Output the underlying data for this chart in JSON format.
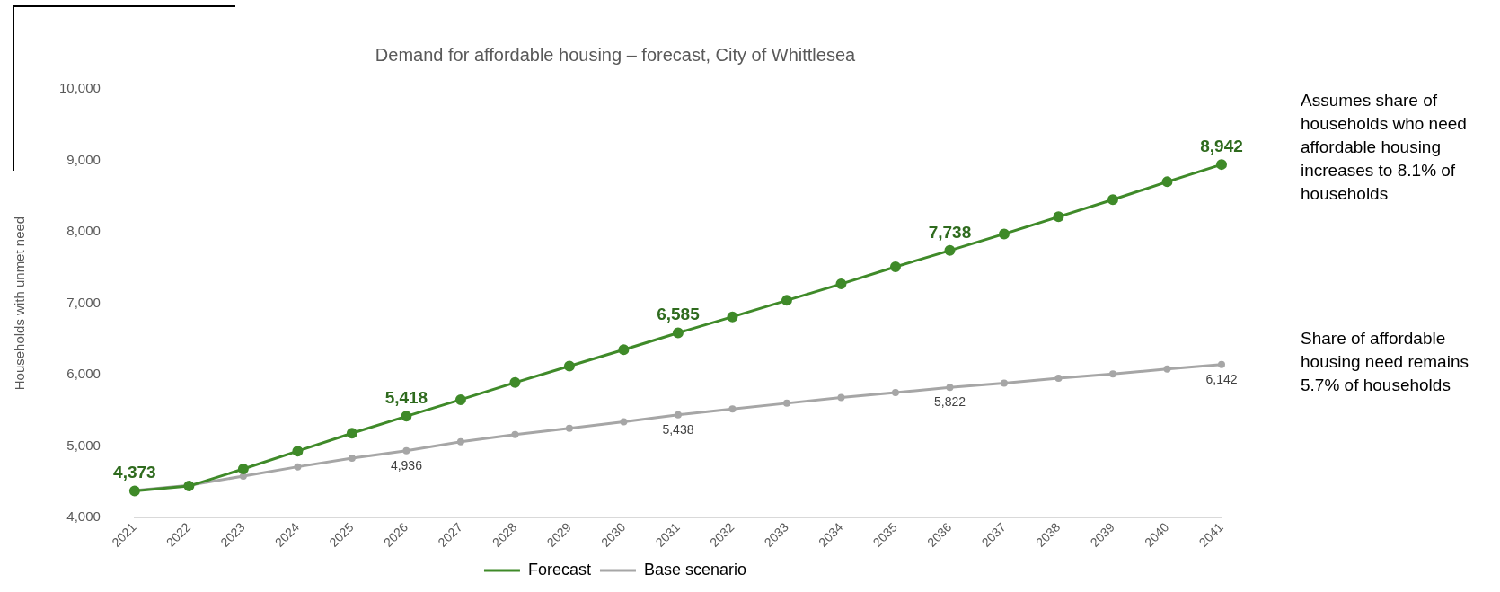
{
  "chart_data": {
    "type": "line",
    "title": "Demand for affordable housing – forecast, City of Whittlesea",
    "ylabel": "Households with unmet need",
    "categories": [
      "2021",
      "2022",
      "2023",
      "2024",
      "2025",
      "2026",
      "2027",
      "2028",
      "2029",
      "2030",
      "2031",
      "2032",
      "2033",
      "2034",
      "2035",
      "2036",
      "2037",
      "2038",
      "2039",
      "2040",
      "2041"
    ],
    "series": [
      {
        "name": "Forecast",
        "color": "#3f8a29",
        "values": [
          4373,
          4440,
          4680,
          4930,
          5180,
          5418,
          5650,
          5890,
          6120,
          6350,
          6585,
          6810,
          7040,
          7270,
          7510,
          7738,
          7970,
          8210,
          8450,
          8700,
          8942
        ],
        "value_labels": [
          "4,373",
          null,
          null,
          null,
          null,
          "5,418",
          null,
          null,
          null,
          null,
          "6,585",
          null,
          null,
          null,
          null,
          "7,738",
          null,
          null,
          null,
          null,
          "8,942"
        ]
      },
      {
        "name": "Base scenario",
        "color": "#a6a6a6",
        "values": [
          4380,
          4450,
          4580,
          4710,
          4830,
          4936,
          5060,
          5160,
          5250,
          5340,
          5438,
          5520,
          5600,
          5680,
          5750,
          5822,
          5880,
          5950,
          6010,
          6080,
          6142
        ],
        "value_labels": [
          null,
          null,
          null,
          null,
          null,
          "4,936",
          null,
          null,
          null,
          null,
          "5,438",
          null,
          null,
          null,
          null,
          "5,822",
          null,
          null,
          null,
          null,
          "6,142"
        ]
      }
    ],
    "ylim": [
      4000,
      10000
    ],
    "yticks": [
      {
        "value": 4000,
        "label": "4,000"
      },
      {
        "value": 5000,
        "label": "5,000"
      },
      {
        "value": 6000,
        "label": "6,000"
      },
      {
        "value": 7000,
        "label": "7,000"
      },
      {
        "value": 8000,
        "label": "8,000"
      },
      {
        "value": 9000,
        "label": "9,000"
      },
      {
        "value": 10000,
        "label": "10,000"
      }
    ],
    "grid": false,
    "legend": "bottom",
    "marker": "circle",
    "line_style": "solid",
    "annotations": [
      "Assumes share of households who need affordable housing increases to 8.1% of households",
      "Share of affordable housing need remains 5.7% of households"
    ]
  }
}
